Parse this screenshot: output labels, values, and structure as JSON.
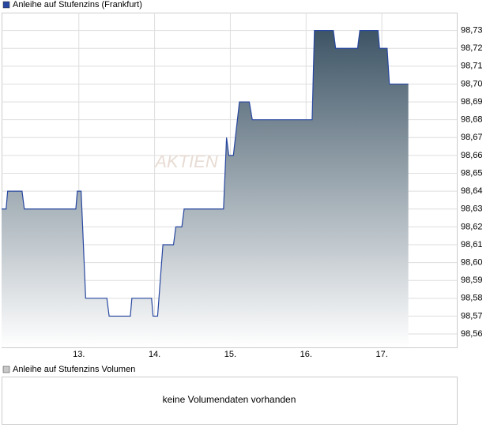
{
  "chart_data": {
    "type": "area-line",
    "x": [
      11.98,
      12.04,
      12.06,
      12.25,
      12.28,
      12.96,
      12.98,
      13.03,
      13.09,
      13.37,
      13.4,
      13.68,
      13.7,
      13.96,
      13.98,
      14.04,
      14.11,
      14.25,
      14.28,
      14.36,
      14.39,
      14.91,
      14.95,
      14.98,
      15.04,
      15.12,
      15.25,
      15.29,
      16.08,
      16.11,
      16.36,
      16.39,
      16.68,
      16.71,
      16.95,
      16.97,
      17.07,
      17.1,
      17.35
    ],
    "series": [
      {
        "name": "Anleihe auf Stufenzins (Frankfurt)",
        "color": "#2747a0",
        "values": [
          98.63,
          98.63,
          98.64,
          98.64,
          98.63,
          98.63,
          98.64,
          98.64,
          98.58,
          98.58,
          98.57,
          98.57,
          98.58,
          98.58,
          98.57,
          98.57,
          98.61,
          98.61,
          98.62,
          98.62,
          98.63,
          98.63,
          98.67,
          98.66,
          98.66,
          98.69,
          98.69,
          98.68,
          98.68,
          98.73,
          98.73,
          98.72,
          98.72,
          98.73,
          98.73,
          98.72,
          98.72,
          98.7,
          98.7
        ]
      }
    ],
    "xlim": [
      11.98,
      17.99
    ],
    "xticks": [
      {
        "value": 13,
        "label": "13."
      },
      {
        "value": 14,
        "label": "14."
      },
      {
        "value": 15,
        "label": "15."
      },
      {
        "value": 16,
        "label": "16."
      },
      {
        "value": 17,
        "label": "17."
      }
    ],
    "ylim": [
      98.5525,
      98.74
    ],
    "yticks": [
      {
        "value": 98.56,
        "label": "98,56"
      },
      {
        "value": 98.57,
        "label": "98,57"
      },
      {
        "value": 98.58,
        "label": "98,58"
      },
      {
        "value": 98.59,
        "label": "98,59"
      },
      {
        "value": 98.6,
        "label": "98,60"
      },
      {
        "value": 98.61,
        "label": "98,61"
      },
      {
        "value": 98.62,
        "label": "98,62"
      },
      {
        "value": 98.63,
        "label": "98,63"
      },
      {
        "value": 98.64,
        "label": "98,64"
      },
      {
        "value": 98.65,
        "label": "98,65"
      },
      {
        "value": 98.66,
        "label": "98,66"
      },
      {
        "value": 98.67,
        "label": "98,67"
      },
      {
        "value": 98.68,
        "label": "98,68"
      },
      {
        "value": 98.69,
        "label": "98,69"
      },
      {
        "value": 98.7,
        "label": "98,70"
      },
      {
        "value": 98.71,
        "label": "98,71"
      },
      {
        "value": 98.72,
        "label": "98,72"
      },
      {
        "value": 98.73,
        "label": "98,73"
      }
    ],
    "grid": true,
    "watermark": "AKTIEN"
  },
  "volume_panel": {
    "legend": "Anleihe auf Stufenzins Volumen",
    "color": "#c8c8c8",
    "message": "keine Volumendaten vorhanden"
  }
}
